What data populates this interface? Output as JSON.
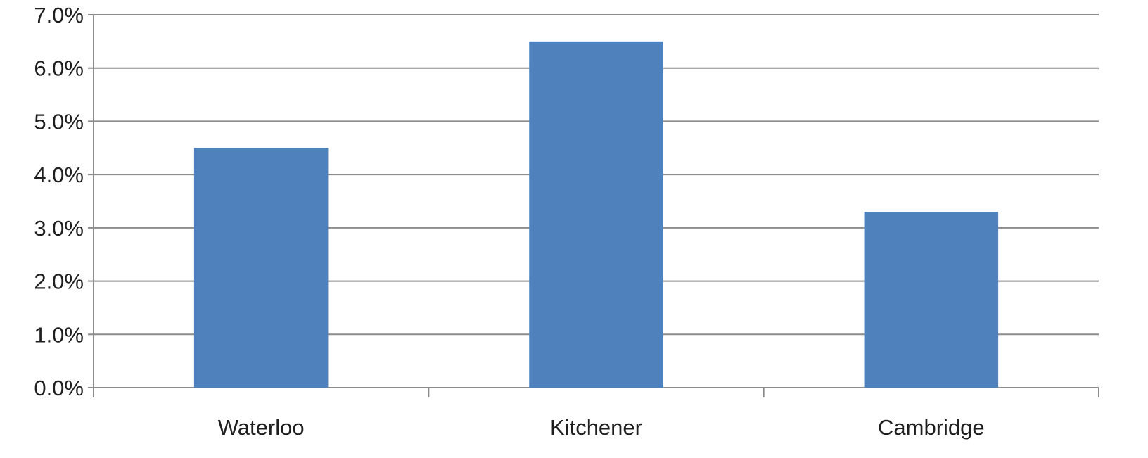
{
  "chart_data": {
    "type": "bar",
    "categories": [
      "Waterloo",
      "Kitchener",
      "Cambridge"
    ],
    "series": [
      {
        "values": [
          4.5,
          6.5,
          3.3
        ],
        "color": "#4F81BD"
      }
    ],
    "yticks": [
      "0.0%",
      "1.0%",
      "2.0%",
      "3.0%",
      "4.0%",
      "5.0%",
      "6.0%",
      "7.0%"
    ],
    "ylim": [
      0,
      7
    ],
    "grid": true,
    "legend": "none",
    "title": "",
    "xlabel": "",
    "ylabel": ""
  },
  "colors": {
    "bar": "#4F81BD",
    "grid": "#8c8c8c",
    "axis": "#8c8c8c"
  }
}
